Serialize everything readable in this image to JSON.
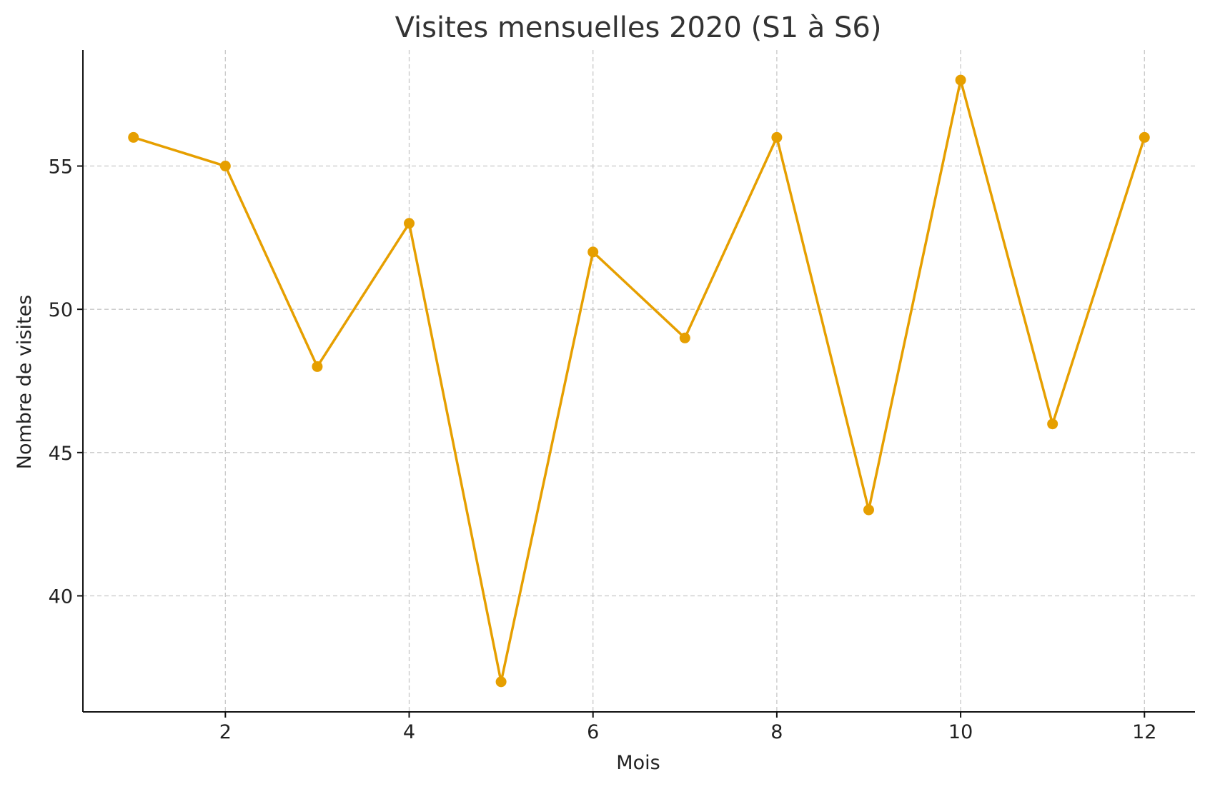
{
  "chart_data": {
    "type": "line",
    "title": "Visites mensuelles 2020 (S1 à S6)",
    "xlabel": "Mois",
    "ylabel": "Nombre de visites",
    "x": [
      1,
      2,
      3,
      4,
      5,
      6,
      7,
      8,
      9,
      10,
      11,
      12
    ],
    "series": [
      {
        "values": [
          56,
          55,
          48,
          53,
          37,
          52,
          49,
          56,
          43,
          58,
          46,
          56
        ],
        "color": "#E69F00",
        "marker": "circle"
      }
    ],
    "xticks": [
      2,
      4,
      6,
      8,
      10,
      12
    ],
    "yticks": [
      40,
      45,
      50,
      55
    ],
    "xlim": [
      0.45,
      12.55
    ],
    "ylim": [
      35.95,
      59.05
    ],
    "grid": true,
    "legend": "none"
  }
}
